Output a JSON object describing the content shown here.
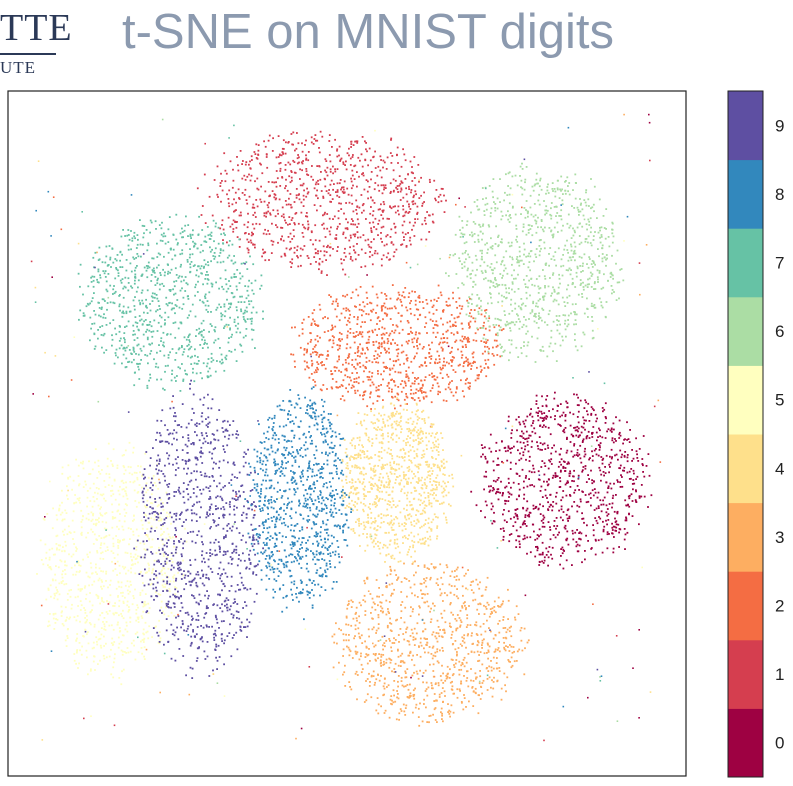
{
  "logo": {
    "top_text": "TTE",
    "bottom_text": "UTE"
  },
  "title": "t-SNE on MNIST digits",
  "chart_data": {
    "type": "scatter",
    "title": "t-SNE on MNIST digits",
    "xlabel": "",
    "ylabel": "",
    "grid": false,
    "legend": "colorbar-right",
    "colorbar_ticks": [
      "0",
      "1",
      "2",
      "3",
      "4",
      "5",
      "6",
      "7",
      "8",
      "9"
    ],
    "colors": [
      "#9e0142",
      "#d53e4f",
      "#f46d43",
      "#fdae61",
      "#fee08b",
      "#ffffbf",
      "#abdda4",
      "#66c2a5",
      "#3288bd",
      "#5e4fa2"
    ],
    "clusters": [
      {
        "digit": "0",
        "center": [
          563,
          480
        ],
        "spread": [
          86,
          84
        ]
      },
      {
        "digit": "1",
        "center": [
          323,
          200
        ],
        "spread": [
          120,
          70
        ]
      },
      {
        "digit": "2",
        "center": [
          397,
          345
        ],
        "spread": [
          105,
          60
        ]
      },
      {
        "digit": "3",
        "center": [
          428,
          640
        ],
        "spread": [
          95,
          80
        ]
      },
      {
        "digit": "4",
        "center": [
          395,
          480
        ],
        "spread": [
          55,
          80
        ]
      },
      {
        "digit": "5",
        "center": [
          110,
          560
        ],
        "spread": [
          70,
          115
        ]
      },
      {
        "digit": "6",
        "center": [
          535,
          262
        ],
        "spread": [
          85,
          95
        ]
      },
      {
        "digit": "7",
        "center": [
          170,
          300
        ],
        "spread": [
          92,
          85
        ]
      },
      {
        "digit": "8",
        "center": [
          298,
          500
        ],
        "spread": [
          50,
          110
        ]
      },
      {
        "digit": "9",
        "center": [
          198,
          530
        ],
        "spread": [
          62,
          140
        ]
      }
    ]
  }
}
